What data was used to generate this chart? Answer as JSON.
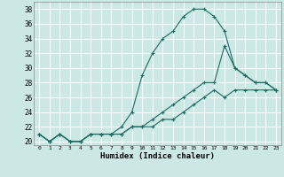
{
  "xlabel": "Humidex (Indice chaleur)",
  "ylabel": "",
  "background_color": "#cce8e5",
  "line_color": "#1a6b60",
  "grid_color": "#ffffff",
  "x_values": [
    0,
    1,
    2,
    3,
    4,
    5,
    6,
    7,
    8,
    9,
    10,
    11,
    12,
    13,
    14,
    15,
    16,
    17,
    18,
    19,
    20,
    21,
    22,
    23
  ],
  "curve1": [
    21,
    20,
    21,
    20,
    20,
    21,
    21,
    21,
    22,
    24,
    29,
    32,
    34,
    35,
    37,
    38,
    38,
    37,
    35,
    30,
    29,
    28,
    28,
    27
  ],
  "curve2": [
    21,
    20,
    21,
    20,
    20,
    21,
    21,
    21,
    21,
    22,
    22,
    23,
    24,
    25,
    26,
    27,
    28,
    28,
    33,
    30,
    29,
    28,
    28,
    27
  ],
  "curve3": [
    21,
    20,
    21,
    20,
    20,
    21,
    21,
    21,
    21,
    22,
    22,
    22,
    23,
    23,
    24,
    25,
    26,
    27,
    26,
    27,
    27,
    27,
    27,
    27
  ],
  "ylim": [
    19.5,
    39
  ],
  "xlim": [
    -0.5,
    23.5
  ],
  "yticks": [
    20,
    22,
    24,
    26,
    28,
    30,
    32,
    34,
    36,
    38
  ],
  "xticks": [
    0,
    1,
    2,
    3,
    4,
    5,
    6,
    7,
    8,
    9,
    10,
    11,
    12,
    13,
    14,
    15,
    16,
    17,
    18,
    19,
    20,
    21,
    22,
    23
  ],
  "marker": "+",
  "markersize": 3,
  "linewidth": 0.8
}
